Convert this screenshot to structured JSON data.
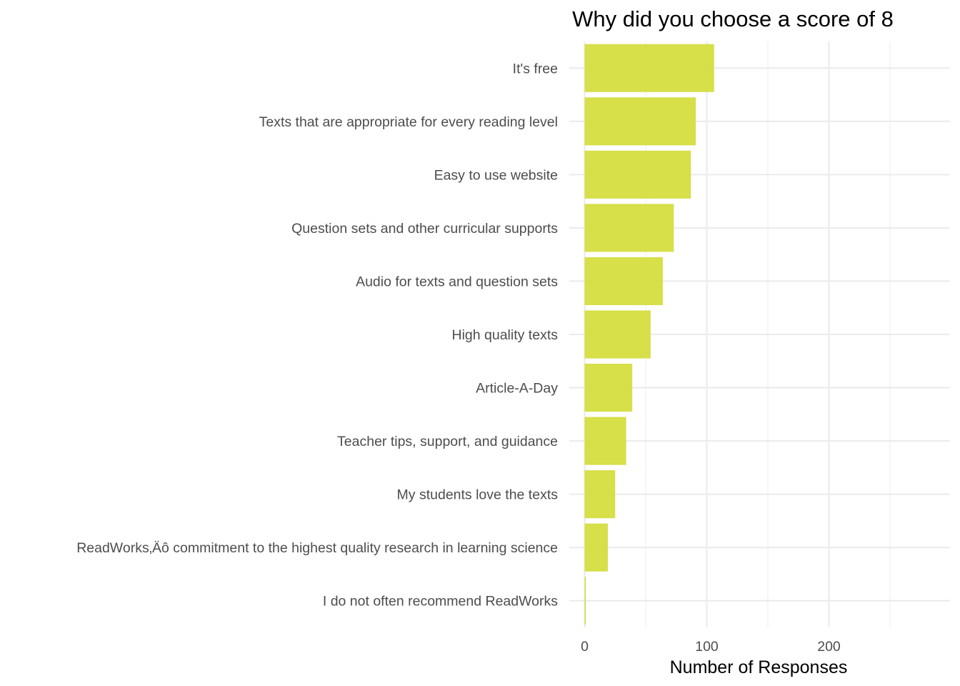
{
  "chart_data": {
    "type": "bar",
    "orientation": "horizontal",
    "title": "Why did you choose a score of 8",
    "xlabel": "Number of Responses",
    "ylabel": "",
    "categories": [
      "It's free",
      "Texts that are appropriate for every reading level",
      "Easy to use website",
      "Question sets and other curricular supports",
      "Audio for texts and question sets",
      "High quality texts",
      "Article-A-Day",
      "Teacher tips, support, and guidance",
      "My students love the texts",
      "ReadWorks‚Äô commitment to the highest quality research in learning science",
      "I do not often recommend ReadWorks"
    ],
    "values": [
      106,
      91,
      87,
      73,
      64,
      54,
      39,
      34,
      25,
      19,
      1
    ],
    "xlim": [
      0,
      300
    ],
    "xticks": [
      0,
      100,
      200
    ],
    "xtick_labels": [
      "0",
      "100",
      "200"
    ],
    "grid": true,
    "legend": "none",
    "colors": {
      "bar": "#d4dc3a",
      "grid": "#ebebeb",
      "text": "#4d4d4d",
      "title": "#000000"
    }
  }
}
